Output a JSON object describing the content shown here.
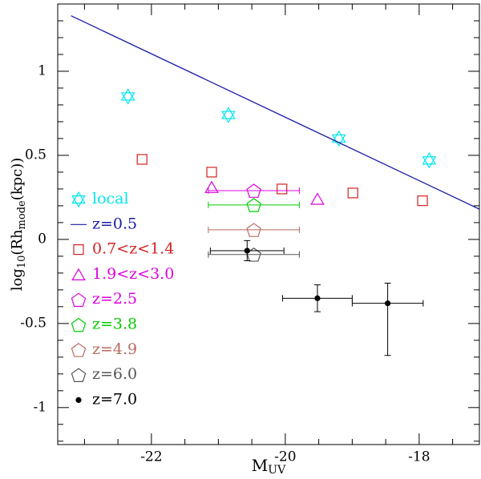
{
  "chart_data": {
    "type": "scatter",
    "xlabel": {
      "main": "M",
      "sub": "UV"
    },
    "ylabel": [
      {
        "text": "log",
        "sub": false
      },
      {
        "text": "10",
        "sub": true
      },
      {
        "text": "(Rh",
        "sub": false
      },
      {
        "text": "mode",
        "sub": true
      },
      {
        "text": "(kpc))",
        "sub": false
      }
    ],
    "xlim": [
      -23.4,
      -17.1
    ],
    "ylim": [
      -1.22,
      1.4
    ],
    "xticks": [
      -22,
      -20,
      -18
    ],
    "xticks_minor": [
      -23,
      -22.5,
      -21.5,
      -21,
      -20.5,
      -19.5,
      -19,
      -18.5,
      -17.5
    ],
    "yticks": [
      1,
      0.5,
      0,
      -0.5,
      -1
    ],
    "yticks_minor": [
      1.3,
      1.2,
      1.1,
      0.9,
      0.8,
      0.7,
      0.6,
      0.4,
      0.3,
      0.2,
      0.1,
      -0.1,
      -0.2,
      -0.3,
      -0.4,
      -0.6,
      -0.7,
      -0.8,
      -0.9,
      -1.1,
      -1.2
    ],
    "legend": "left",
    "series": [
      {
        "name": "local",
        "color": "#00e5ee",
        "marker": "star",
        "x": [
          -22.35,
          -20.85,
          -19.2,
          -17.85
        ],
        "values": [
          0.85,
          0.74,
          0.6,
          0.47
        ]
      },
      {
        "name": "z=0.5",
        "color": "#1a1aa8",
        "marker": "line",
        "x": [
          -23.2,
          -17.1
        ],
        "values": [
          1.33,
          0.18
        ]
      },
      {
        "name": "0.7<z<1.4",
        "color": "#d42020",
        "marker": "square",
        "x": [
          -22.14,
          -21.1,
          -20.05,
          -18.99,
          -17.95
        ],
        "values": [
          0.476,
          0.4,
          0.3,
          0.276,
          0.23
        ]
      },
      {
        "name": "1.9<z<3.0",
        "color": "#dd00dd",
        "marker": "triangle",
        "x": [
          -21.1,
          -19.52
        ],
        "values": [
          0.31,
          0.24
        ]
      },
      {
        "name": "z=2.5",
        "color": "#dd00dd",
        "marker": "pentagon",
        "x": [
          -20.47
        ],
        "values": [
          0.29
        ],
        "xerr": [
          0.68
        ]
      },
      {
        "name": "z=3.8",
        "color": "#00cc00",
        "marker": "pentagon",
        "x": [
          -20.47
        ],
        "values": [
          0.205
        ],
        "xerr": [
          0.68
        ]
      },
      {
        "name": "z=4.9",
        "color": "#b86a60",
        "marker": "pentagon",
        "x": [
          -20.47
        ],
        "values": [
          0.057
        ],
        "xerr": [
          0.68
        ]
      },
      {
        "name": "z=6.0",
        "color": "#555555",
        "marker": "pentagon",
        "x": [
          -20.47
        ],
        "values": [
          -0.09
        ],
        "xerr": [
          0.68
        ]
      },
      {
        "name": "z=7.0",
        "color": "#000000",
        "marker": "dot",
        "x": [
          -20.57,
          -19.52,
          -18.47
        ],
        "values": [
          -0.067,
          -0.35,
          -0.38
        ],
        "xerr": [
          0.55,
          0.52,
          0.53
        ],
        "yerr_minus": [
          0.06,
          0.08,
          0.31
        ],
        "yerr_plus": [
          0.06,
          0.08,
          0.12
        ]
      }
    ]
  }
}
